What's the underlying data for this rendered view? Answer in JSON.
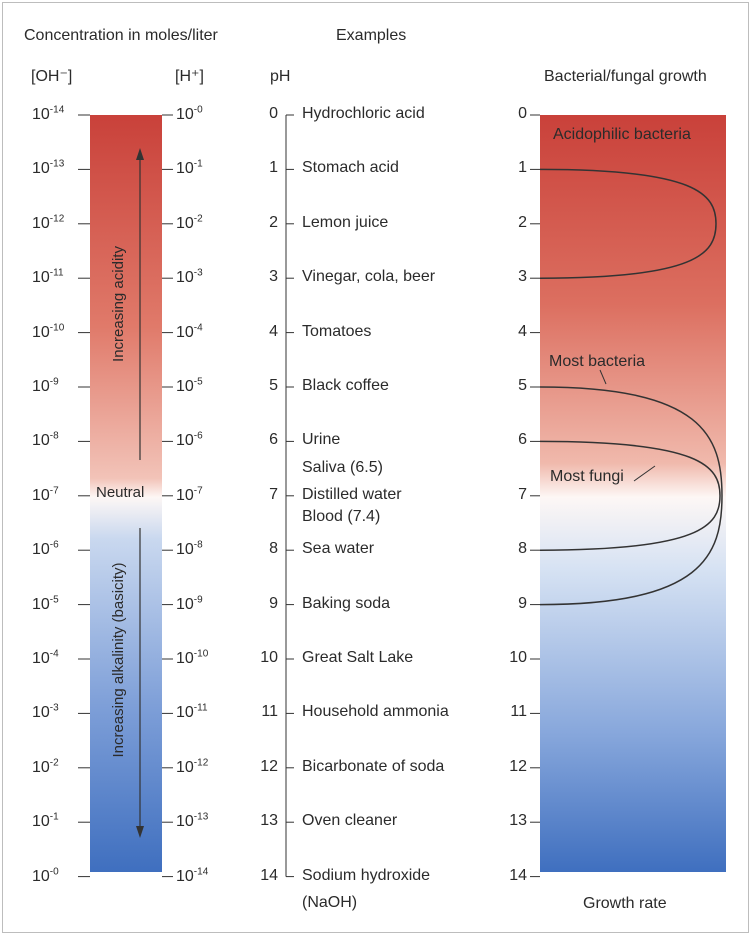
{
  "headers": {
    "concentration": "Concentration in moles/liter",
    "examples": "Examples",
    "oh": "[OH⁻]",
    "h": "[H⁺]",
    "ph": "pH",
    "growth": "Bacterial/fungal growth",
    "growth_rate": "Growth rate"
  },
  "oh_exponents": [
    "-14",
    "-13",
    "-12",
    "-11",
    "-10",
    "-9",
    "-8",
    "-7",
    "-6",
    "-5",
    "-4",
    "-3",
    "-2",
    "-1",
    "-0"
  ],
  "h_exponents": [
    "-0",
    "-1",
    "-2",
    "-3",
    "-4",
    "-5",
    "-6",
    "-7",
    "-8",
    "-9",
    "-10",
    "-11",
    "-12",
    "-13",
    "-14"
  ],
  "ph_values": [
    "0",
    "1",
    "2",
    "3",
    "4",
    "5",
    "6",
    "7",
    "8",
    "9",
    "10",
    "11",
    "12",
    "13",
    "14"
  ],
  "examples": [
    {
      "ph": 0,
      "label": "Hydrochloric acid"
    },
    {
      "ph": 1,
      "label": "Stomach acid"
    },
    {
      "ph": 2,
      "label": "Lemon juice"
    },
    {
      "ph": 3,
      "label": "Vinegar, cola, beer"
    },
    {
      "ph": 4,
      "label": "Tomatoes"
    },
    {
      "ph": 5,
      "label": "Black coffee"
    },
    {
      "ph": 6,
      "label": "Urine"
    },
    {
      "ph": 6.5,
      "label": "Saliva (6.5)"
    },
    {
      "ph": 7,
      "label": "Distilled water"
    },
    {
      "ph": 7.4,
      "label": "Blood (7.4)"
    },
    {
      "ph": 8,
      "label": "Sea water"
    },
    {
      "ph": 9,
      "label": "Baking soda"
    },
    {
      "ph": 10,
      "label": "Great Salt Lake"
    },
    {
      "ph": 11,
      "label": "Household ammonia"
    },
    {
      "ph": 12,
      "label": "Bicarbonate of soda"
    },
    {
      "ph": 13,
      "label": "Oven cleaner"
    },
    {
      "ph": 14,
      "label": "Sodium hydroxide"
    },
    {
      "ph": 14.5,
      "label": "(NaOH)"
    }
  ],
  "bar_labels": {
    "neutral": "Neutral",
    "acidity": "Increasing acidity",
    "alkalinity": "Increasing alkalinity (basicity)"
  },
  "growth_labels": {
    "acidophilic": "Acidophilic bacteria",
    "most_bacteria": "Most bacteria",
    "most_fungi": "Most fungi"
  },
  "growth_ranges": {
    "acidophilic": {
      "ph_min": 1,
      "ph_max": 3
    },
    "most_bacteria": {
      "ph_min": 5,
      "ph_max": 9
    },
    "most_fungi": {
      "ph_min": 6,
      "ph_max": 8
    }
  },
  "colors": {
    "acid": "#c9413a",
    "neutral": "#fdf7f5",
    "base": "#3f6fbf",
    "line": "#333333"
  }
}
